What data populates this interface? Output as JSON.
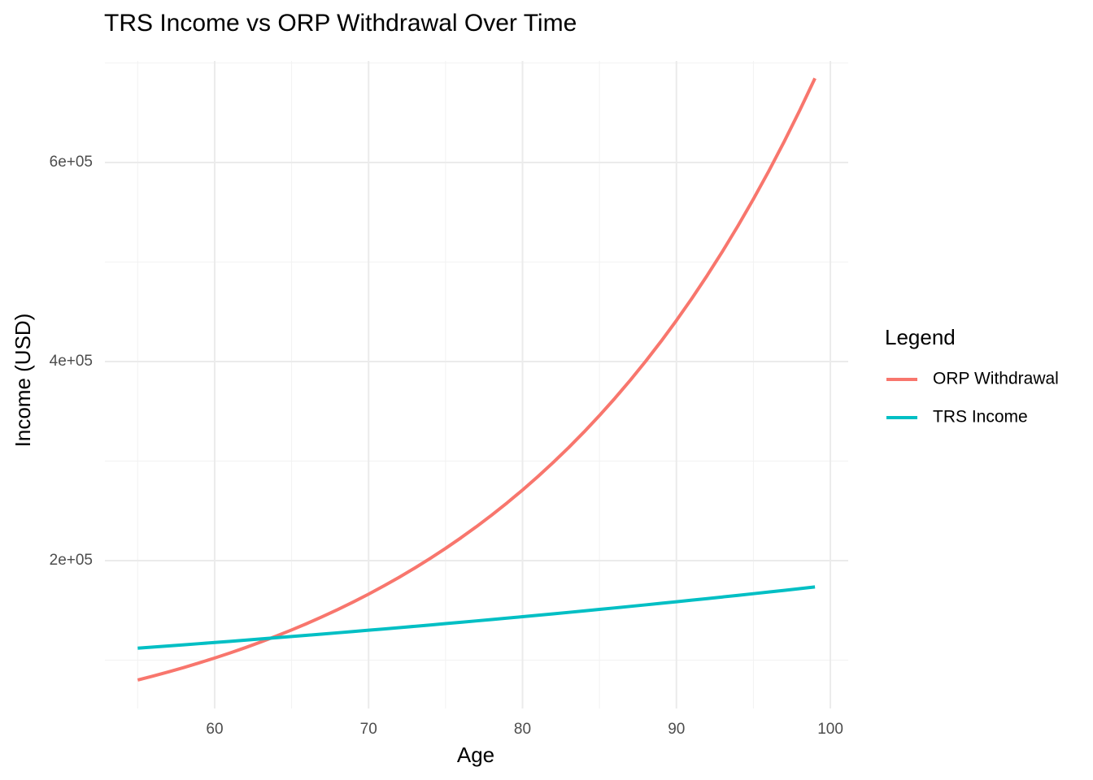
{
  "chart_data": {
    "type": "line",
    "title": "TRS Income vs ORP Withdrawal Over Time",
    "x_label": "Age",
    "y_label": "Income (USD)",
    "legend_title": "Legend",
    "legend_position": "right",
    "grid": true,
    "x": [
      55,
      56,
      57,
      58,
      59,
      60,
      61,
      62,
      63,
      64,
      65,
      66,
      67,
      68,
      69,
      70,
      71,
      72,
      73,
      74,
      75,
      76,
      77,
      78,
      79,
      80,
      81,
      82,
      83,
      84,
      85,
      86,
      87,
      88,
      89,
      90,
      91,
      92,
      93,
      94,
      95,
      96,
      97,
      98,
      99
    ],
    "series": [
      {
        "name": "ORP Withdrawal",
        "color": "#F8766D",
        "values": [
          80000,
          84000,
          88200,
          92610,
          97240,
          102100,
          107210,
          112570,
          118200,
          124110,
          130310,
          136830,
          143670,
          150850,
          158390,
          166310,
          174630,
          183360,
          192530,
          202160,
          212260,
          222880,
          234020,
          245720,
          258010,
          270910,
          284450,
          298680,
          313610,
          329290,
          345760,
          363040,
          381200,
          400260,
          420270,
          441280,
          463350,
          486510,
          510840,
          536380,
          563200,
          591360,
          620930,
          651970,
          684570
        ]
      },
      {
        "name": "TRS Income",
        "color": "#00BFC4",
        "values": [
          112000,
          113120,
          114250,
          115390,
          116550,
          117710,
          118890,
          120080,
          121280,
          122490,
          123720,
          124950,
          126200,
          127470,
          128740,
          130030,
          131330,
          132640,
          133970,
          135310,
          136660,
          138030,
          139410,
          140800,
          142210,
          143630,
          145070,
          146520,
          147980,
          149460,
          150960,
          152470,
          153990,
          155530,
          157090,
          158660,
          160250,
          161850,
          163470,
          165100,
          166750,
          168420,
          170100,
          171810,
          173520
        ]
      }
    ],
    "xlim": [
      52.87,
      101.16
    ],
    "xticks": [
      60,
      70,
      80,
      90,
      100
    ],
    "xminorticks": [
      55,
      65,
      75,
      85,
      95
    ],
    "ylim": [
      51400,
      702000
    ],
    "yticks": [
      {
        "value": 200000,
        "label": "2e+05"
      },
      {
        "value": 400000,
        "label": "4e+05"
      },
      {
        "value": 600000,
        "label": "6e+05"
      }
    ],
    "yminorticks": [
      100000,
      300000,
      500000,
      700000
    ]
  }
}
